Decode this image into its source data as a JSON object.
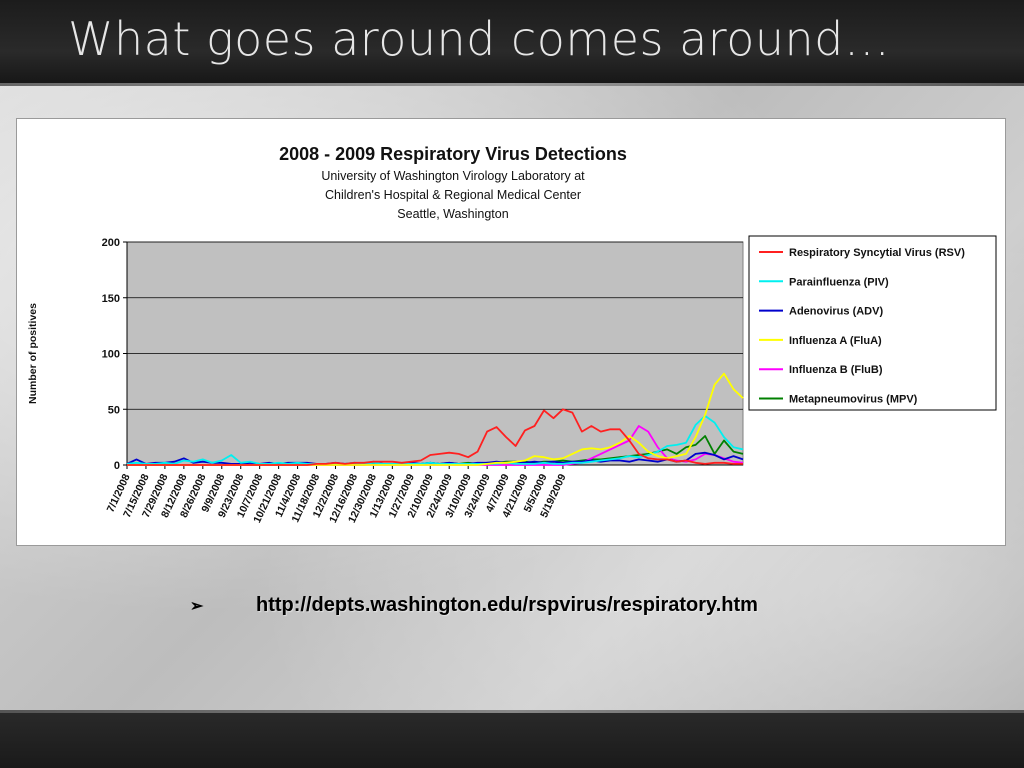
{
  "slide": {
    "title": "What goes around comes around…",
    "bullet_symbol": "➢",
    "link_text": "http://depts.washington.edu/rspvirus/respiratory.htm"
  },
  "chart_data": {
    "type": "line",
    "title": "2008 - 2009 Respiratory Virus Detections",
    "subtitle": [
      "University of Washington Virology Laboratory at",
      "Children's Hospital & Regional Medical Center",
      "Seattle, Washington"
    ],
    "xlabel": "",
    "ylabel": "Number of positives",
    "ylim": [
      0,
      200
    ],
    "yticks": [
      0,
      50,
      100,
      150,
      200
    ],
    "grid": true,
    "legend_position": "right",
    "x_tick_labels": [
      "7/1/2008",
      "7/15/2008",
      "7/29/2008",
      "8/12/2008",
      "8/26/2008",
      "9/9/2008",
      "9/23/2008",
      "10/7/2008",
      "10/21/2008",
      "11/4/2008",
      "11/18/2008",
      "12/2/2008",
      "12/16/2008",
      "12/30/2008",
      "1/13/2009",
      "1/27/2009",
      "2/10/2009",
      "2/24/2009",
      "3/10/2009",
      "3/24/2009",
      "4/7/2009",
      "4/21/2009",
      "5/5/2009",
      "5/19/2009"
    ],
    "series": [
      {
        "name": "Respiratory Syncytial Virus (RSV)",
        "color": "#ff2020",
        "values": [
          0,
          0,
          0,
          0,
          0,
          0,
          0,
          0,
          0,
          0,
          0,
          0,
          0,
          0,
          0,
          0,
          0,
          0,
          0,
          0,
          1,
          1,
          2,
          1,
          2,
          2,
          3,
          3,
          3,
          2,
          3,
          4,
          9,
          10,
          11,
          10,
          7,
          12,
          30,
          34,
          25,
          17,
          31,
          35,
          49,
          42,
          50,
          47,
          30,
          35,
          30,
          32,
          32,
          22,
          10,
          6,
          5,
          5,
          3,
          4,
          2,
          1,
          2,
          2,
          1,
          1
        ]
      },
      {
        "name": "Parainfluenza (PIV)",
        "color": "#00f0f0",
        "values": [
          1,
          2,
          1,
          1,
          2,
          1,
          4,
          3,
          5,
          2,
          4,
          9,
          2,
          3,
          1,
          1,
          2,
          1,
          2,
          1,
          1,
          1,
          1,
          1,
          2,
          1,
          2,
          1,
          1,
          1,
          1,
          1,
          2,
          1,
          1,
          1,
          1,
          1,
          1,
          1,
          2,
          1,
          1,
          1,
          2,
          1,
          1,
          2,
          2,
          3,
          4,
          5,
          6,
          8,
          7,
          9,
          12,
          17,
          18,
          20,
          36,
          44,
          38,
          25,
          16,
          14
        ]
      },
      {
        "name": "Adenovirus (ADV)",
        "color": "#0000cc",
        "values": [
          1,
          5,
          1,
          2,
          2,
          3,
          6,
          2,
          3,
          2,
          2,
          1,
          1,
          2,
          1,
          2,
          1,
          2,
          2,
          2,
          1,
          1,
          2,
          1,
          2,
          1,
          3,
          1,
          1,
          1,
          2,
          1,
          2,
          1,
          2,
          1,
          1,
          2,
          2,
          3,
          2,
          3,
          2,
          3,
          2,
          3,
          2,
          3,
          3,
          4,
          3,
          4,
          4,
          3,
          5,
          4,
          3,
          5,
          3,
          4,
          10,
          11,
          9,
          5,
          8,
          5
        ]
      },
      {
        "name": "Influenza A (FluA)",
        "color": "#ffff00",
        "values": [
          0,
          0,
          0,
          0,
          0,
          0,
          0,
          0,
          0,
          0,
          0,
          0,
          0,
          0,
          0,
          0,
          0,
          0,
          0,
          0,
          0,
          0,
          0,
          0,
          0,
          0,
          0,
          0,
          0,
          0,
          0,
          0,
          0,
          0,
          0,
          0,
          0,
          0,
          1,
          2,
          2,
          3,
          4,
          8,
          7,
          5,
          6,
          10,
          14,
          15,
          14,
          16,
          20,
          26,
          20,
          12,
          8,
          6,
          8,
          10,
          25,
          45,
          72,
          82,
          68,
          60
        ]
      },
      {
        "name": "Influenza B (FluB)",
        "color": "#ff00ff",
        "values": [
          0,
          0,
          0,
          0,
          0,
          0,
          0,
          0,
          0,
          0,
          0,
          0,
          0,
          0,
          0,
          0,
          0,
          0,
          0,
          0,
          0,
          0,
          0,
          0,
          0,
          0,
          0,
          0,
          0,
          0,
          0,
          0,
          0,
          0,
          0,
          0,
          0,
          0,
          0,
          0,
          0,
          0,
          0,
          0,
          0,
          0,
          0,
          1,
          2,
          6,
          10,
          14,
          18,
          22,
          35,
          30,
          16,
          6,
          4,
          3,
          5,
          10,
          9,
          6,
          3,
          2
        ]
      },
      {
        "name": "Metapneumovirus (MPV)",
        "color": "#008000",
        "values": [
          0,
          0,
          0,
          0,
          0,
          0,
          0,
          0,
          0,
          0,
          0,
          0,
          0,
          0,
          0,
          0,
          0,
          0,
          0,
          0,
          0,
          0,
          0,
          0,
          0,
          0,
          1,
          1,
          1,
          1,
          1,
          1,
          2,
          1,
          2,
          1,
          2,
          1,
          2,
          2,
          3,
          3,
          3,
          2,
          3,
          3,
          4,
          3,
          4,
          5,
          5,
          6,
          7,
          8,
          9,
          10,
          12,
          14,
          10,
          16,
          18,
          26,
          10,
          22,
          12,
          10
        ]
      }
    ]
  }
}
